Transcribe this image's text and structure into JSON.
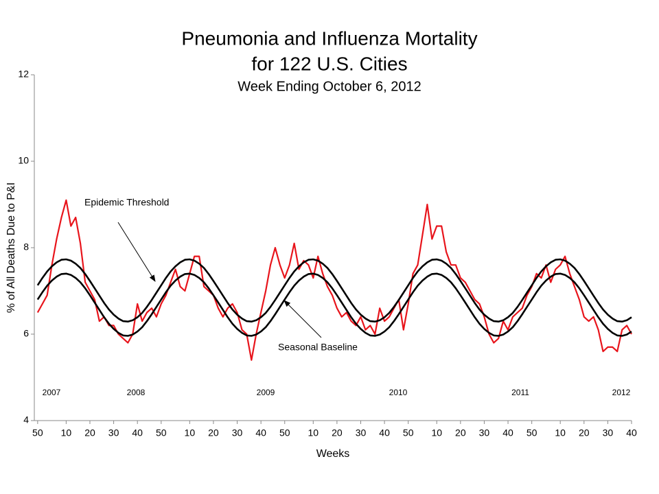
{
  "chart_data": {
    "type": "line",
    "title": [
      "Pneumonia and Influenza Mortality",
      "for 122 U.S. Cities"
    ],
    "subtitle": "Week Ending October 6, 2012",
    "xlabel": "Weeks",
    "ylabel": "% of All Deaths Due to P&I",
    "annotations": [
      "Epidemic Threshold",
      "Seasonal Baseline"
    ],
    "year_labels": [
      "2007",
      "2008",
      "2009",
      "2010",
      "2011",
      "2012"
    ],
    "xlim": [
      -1.4,
      250
    ],
    "ylim": [
      4,
      12
    ],
    "yticks": [
      4,
      6,
      8,
      10,
      12
    ],
    "xticks": [
      {
        "value": 0,
        "label": "50"
      },
      {
        "value": 12,
        "label": "10"
      },
      {
        "value": 22,
        "label": "20"
      },
      {
        "value": 32,
        "label": "30"
      },
      {
        "value": 42,
        "label": "40"
      },
      {
        "value": 52,
        "label": "50"
      },
      {
        "value": 64,
        "label": "10"
      },
      {
        "value": 74,
        "label": "20"
      },
      {
        "value": 84,
        "label": "30"
      },
      {
        "value": 94,
        "label": "40"
      },
      {
        "value": 104,
        "label": "50"
      },
      {
        "value": 116,
        "label": "10"
      },
      {
        "value": 126,
        "label": "20"
      },
      {
        "value": 136,
        "label": "30"
      },
      {
        "value": 146,
        "label": "40"
      },
      {
        "value": 156,
        "label": "50"
      },
      {
        "value": 168,
        "label": "10"
      },
      {
        "value": 178,
        "label": "20"
      },
      {
        "value": 188,
        "label": "30"
      },
      {
        "value": 198,
        "label": "40"
      },
      {
        "value": 208,
        "label": "50"
      },
      {
        "value": 220,
        "label": "10"
      },
      {
        "value": 230,
        "label": "20"
      },
      {
        "value": 240,
        "label": "30"
      },
      {
        "value": 250,
        "label": "40"
      }
    ],
    "x": [
      0,
      2,
      4,
      6,
      8,
      10,
      12,
      14,
      16,
      18,
      20,
      22,
      24,
      26,
      28,
      30,
      32,
      34,
      36,
      38,
      40,
      42,
      44,
      46,
      48,
      50,
      52,
      54,
      56,
      58,
      60,
      62,
      64,
      66,
      68,
      70,
      72,
      74,
      76,
      78,
      80,
      82,
      84,
      86,
      88,
      90,
      92,
      94,
      96,
      98,
      100,
      102,
      104,
      106,
      108,
      110,
      112,
      114,
      116,
      118,
      120,
      122,
      124,
      126,
      128,
      130,
      132,
      134,
      136,
      138,
      140,
      142,
      144,
      146,
      148,
      150,
      152,
      154,
      156,
      158,
      160,
      162,
      164,
      166,
      168,
      170,
      172,
      174,
      176,
      178,
      180,
      182,
      184,
      186,
      188,
      190,
      192,
      194,
      196,
      198,
      200,
      202,
      204,
      206,
      208,
      210,
      212,
      214,
      216,
      218,
      220,
      222,
      224,
      226,
      228,
      230,
      232,
      234,
      236,
      238,
      240,
      242,
      244,
      246,
      248,
      250
    ],
    "series": [
      {
        "name": "P&I",
        "color": "#e8141b",
        "values": [
          6.5,
          6.7,
          6.9,
          7.6,
          8.2,
          8.7,
          9.1,
          8.5,
          8.7,
          8.1,
          7.2,
          7.0,
          6.8,
          6.3,
          6.4,
          6.2,
          6.2,
          6.0,
          5.9,
          5.8,
          6.0,
          6.7,
          6.3,
          6.5,
          6.6,
          6.4,
          6.7,
          6.9,
          7.2,
          7.5,
          7.1,
          7.0,
          7.4,
          7.8,
          7.8,
          7.1,
          7.0,
          6.9,
          6.6,
          6.4,
          6.6,
          6.7,
          6.5,
          6.1,
          6.0,
          5.4,
          6.0,
          6.5,
          7.0,
          7.6,
          8.0,
          7.6,
          7.3,
          7.6,
          8.1,
          7.5,
          7.7,
          7.6,
          7.3,
          7.8,
          7.4,
          7.1,
          6.9,
          6.6,
          6.4,
          6.5,
          6.3,
          6.2,
          6.4,
          6.1,
          6.2,
          6.0,
          6.6,
          6.3,
          6.4,
          6.6,
          6.8,
          6.1,
          6.7,
          7.4,
          7.6,
          8.3,
          9.0,
          8.2,
          8.5,
          8.5,
          7.9,
          7.6,
          7.6,
          7.3,
          7.2,
          7.0,
          6.8,
          6.7,
          6.4,
          6.0,
          5.8,
          5.9,
          6.3,
          6.1,
          6.4,
          6.5,
          6.6,
          6.9,
          7.1,
          7.4,
          7.3,
          7.6,
          7.2,
          7.5,
          7.6,
          7.8,
          7.4,
          7.1,
          6.8,
          6.4,
          6.3,
          6.4,
          6.1,
          5.6,
          5.7,
          5.7,
          5.6,
          6.1,
          6.2,
          6.0
        ]
      },
      {
        "name": "Epidemic Threshold",
        "color": "#000000",
        "values": [
          7.13,
          7.3,
          7.45,
          7.57,
          7.66,
          7.72,
          7.73,
          7.7,
          7.63,
          7.53,
          7.39,
          7.23,
          7.06,
          6.89,
          6.72,
          6.57,
          6.45,
          6.36,
          6.3,
          6.29,
          6.32,
          6.39,
          6.49,
          6.63,
          6.79,
          6.96,
          7.13,
          7.3,
          7.45,
          7.57,
          7.66,
          7.72,
          7.73,
          7.7,
          7.63,
          7.53,
          7.39,
          7.23,
          7.06,
          6.89,
          6.72,
          6.57,
          6.45,
          6.36,
          6.3,
          6.29,
          6.32,
          6.39,
          6.49,
          6.63,
          6.79,
          6.96,
          7.13,
          7.3,
          7.45,
          7.57,
          7.66,
          7.72,
          7.73,
          7.7,
          7.63,
          7.53,
          7.39,
          7.23,
          7.06,
          6.89,
          6.72,
          6.57,
          6.45,
          6.36,
          6.3,
          6.29,
          6.32,
          6.39,
          6.49,
          6.63,
          6.79,
          6.96,
          7.13,
          7.3,
          7.45,
          7.57,
          7.66,
          7.72,
          7.73,
          7.7,
          7.63,
          7.53,
          7.39,
          7.23,
          7.06,
          6.89,
          6.72,
          6.57,
          6.45,
          6.36,
          6.3,
          6.29,
          6.32,
          6.39,
          6.49,
          6.63,
          6.79,
          6.96,
          7.13,
          7.3,
          7.45,
          7.57,
          7.66,
          7.72,
          7.73,
          7.7,
          7.63,
          7.53,
          7.39,
          7.23,
          7.06,
          6.89,
          6.72,
          6.57,
          6.45,
          6.36,
          6.3,
          6.29,
          6.32,
          6.39
        ]
      },
      {
        "name": "Seasonal Baseline",
        "color": "#000000",
        "values": [
          6.8,
          6.97,
          7.12,
          7.24,
          7.33,
          7.39,
          7.4,
          7.37,
          7.3,
          7.2,
          7.06,
          6.9,
          6.73,
          6.56,
          6.39,
          6.24,
          6.12,
          6.03,
          5.97,
          5.96,
          5.99,
          6.06,
          6.16,
          6.3,
          6.46,
          6.63,
          6.8,
          6.97,
          7.12,
          7.24,
          7.33,
          7.39,
          7.4,
          7.37,
          7.3,
          7.2,
          7.06,
          6.9,
          6.73,
          6.56,
          6.39,
          6.24,
          6.12,
          6.03,
          5.97,
          5.96,
          5.99,
          6.06,
          6.16,
          6.3,
          6.46,
          6.63,
          6.8,
          6.97,
          7.12,
          7.24,
          7.33,
          7.39,
          7.4,
          7.37,
          7.3,
          7.2,
          7.06,
          6.9,
          6.73,
          6.56,
          6.39,
          6.24,
          6.12,
          6.03,
          5.97,
          5.96,
          5.99,
          6.06,
          6.16,
          6.3,
          6.46,
          6.63,
          6.8,
          6.97,
          7.12,
          7.24,
          7.33,
          7.39,
          7.4,
          7.37,
          7.3,
          7.2,
          7.06,
          6.9,
          6.73,
          6.56,
          6.39,
          6.24,
          6.12,
          6.03,
          5.97,
          5.96,
          5.99,
          6.06,
          6.16,
          6.3,
          6.46,
          6.63,
          6.8,
          6.97,
          7.12,
          7.24,
          7.33,
          7.39,
          7.4,
          7.37,
          7.3,
          7.2,
          7.06,
          6.9,
          6.73,
          6.56,
          6.39,
          6.24,
          6.12,
          6.03,
          5.97,
          5.96,
          5.99,
          6.06
        ]
      }
    ]
  }
}
